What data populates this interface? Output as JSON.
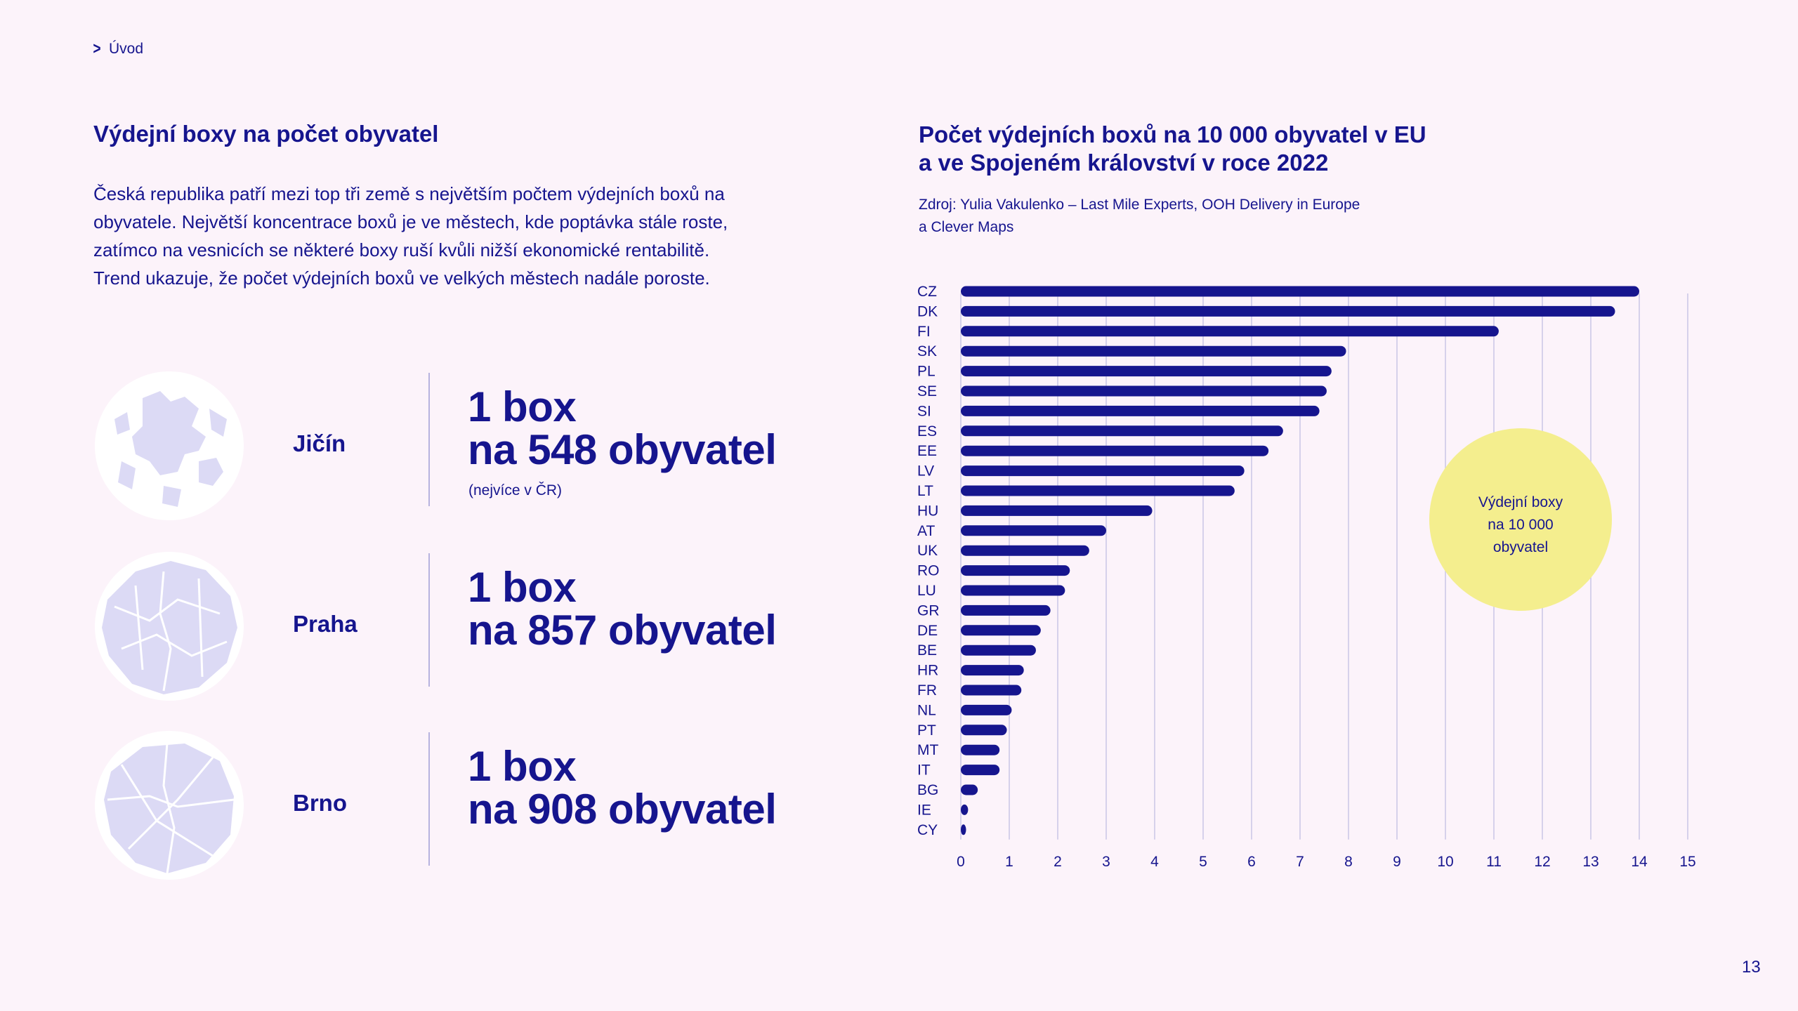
{
  "breadcrumb": {
    "label": "Úvod"
  },
  "left": {
    "title": "Výdejní boxy na počet obyvatel",
    "intro": "Česká republika patří mezi top tři země s největším počtem výdejních boxů na obyvatele. Největší koncentrace boxů je ve městech, kde poptávka stále roste, zatímco na vesnicích se některé boxy ruší kvůli nižší ekonomické rentabilitě. Trend ukazuje, že počet výdejních boxů ve velkých městech nadále poroste."
  },
  "cities": [
    {
      "name": "Jičín",
      "line1": "1 box",
      "line2": "na 548 obyvatel",
      "note": "(nejvíce v ČR)"
    },
    {
      "name": "Praha",
      "line1": "1 box",
      "line2": "na 857 obyvatel"
    },
    {
      "name": "Brno",
      "line1": "1 box",
      "line2": "na 908 obyvatel"
    }
  ],
  "chart": {
    "title_line1": "Počet výdejních boxů na 10 000 obyvatel v EU",
    "title_line2": "a ve Spojeném království v roce 2022",
    "source_line1": "Zdroj: Yulia Vakulenko – Last Mile Experts, OOH Delivery in Europe",
    "source_line2": "a Clever Maps",
    "legend_line1": "Výdejní boxy",
    "legend_line2": "na 10 000",
    "legend_line3": "obyvatel"
  },
  "colors": {
    "background": "#fcf3fa",
    "primary": "#16158e",
    "legend": "#f4ee8e",
    "grid": "#c9c6e6",
    "map_fill": "#dcdaf5"
  },
  "chart_data": {
    "type": "bar",
    "orientation": "horizontal",
    "categories": [
      "CZ",
      "DK",
      "FI",
      "SK",
      "PL",
      "SE",
      "SI",
      "ES",
      "EE",
      "LV",
      "LT",
      "HU",
      "AT",
      "UK",
      "RO",
      "LU",
      "GR",
      "DE",
      "BE",
      "HR",
      "FR",
      "NL",
      "PT",
      "MT",
      "IT",
      "BG",
      "IE",
      "CY"
    ],
    "values": [
      14.0,
      13.5,
      11.1,
      7.95,
      7.65,
      7.55,
      7.4,
      6.65,
      6.35,
      5.85,
      5.65,
      3.95,
      3.0,
      2.65,
      2.25,
      2.15,
      1.85,
      1.65,
      1.55,
      1.3,
      1.25,
      1.05,
      0.95,
      0.8,
      0.8,
      0.35,
      0.15,
      0.1
    ],
    "xlim": [
      0,
      15
    ],
    "xticks": [
      0,
      1,
      2,
      3,
      4,
      5,
      6,
      7,
      8,
      9,
      10,
      11,
      12,
      13,
      14,
      15
    ],
    "series_label": "Výdejní boxy na 10 000 obyvatel",
    "grid": true,
    "legend_position": "right"
  },
  "page_number": "13"
}
